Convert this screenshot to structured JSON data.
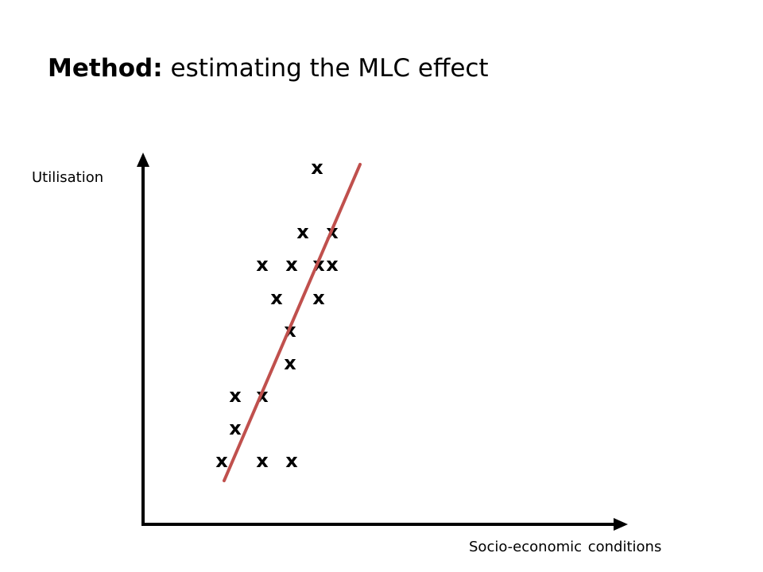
{
  "title": {
    "bold": "Method:",
    "rest": " estimating the MLC effect"
  },
  "y_axis_label": "Utilisation",
  "x_axis_label": "Socio-economic conditions",
  "marker_glyph": "x",
  "trend_line_color": "#c0504d",
  "axis_color": "#000000"
}
